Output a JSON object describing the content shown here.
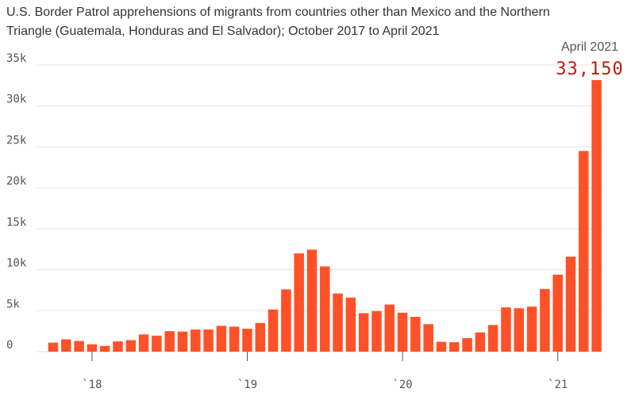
{
  "chart_data": {
    "type": "bar",
    "subtitle": "U.S. Border Patrol apprehensions of migrants from countries other than Mexico and the Northern Triangle (Guatemala, Honduras and El Salvador); October 2017 to April 2021",
    "x": [
      "2017-10",
      "2017-11",
      "2017-12",
      "2018-01",
      "2018-02",
      "2018-03",
      "2018-04",
      "2018-05",
      "2018-06",
      "2018-07",
      "2018-08",
      "2018-09",
      "2018-10",
      "2018-11",
      "2018-12",
      "2019-01",
      "2019-02",
      "2019-03",
      "2019-04",
      "2019-05",
      "2019-06",
      "2019-07",
      "2019-08",
      "2019-09",
      "2019-10",
      "2019-11",
      "2019-12",
      "2020-01",
      "2020-02",
      "2020-03",
      "2020-04",
      "2020-05",
      "2020-06",
      "2020-07",
      "2020-08",
      "2020-09",
      "2020-10",
      "2020-11",
      "2020-12",
      "2021-01",
      "2021-02",
      "2021-03",
      "2021-04"
    ],
    "values": [
      1100,
      1500,
      1300,
      900,
      700,
      1250,
      1400,
      2100,
      1950,
      2500,
      2450,
      2700,
      2700,
      3150,
      3050,
      2800,
      3500,
      5150,
      7600,
      12000,
      12450,
      10400,
      7100,
      6600,
      4700,
      4950,
      5750,
      4750,
      4250,
      3350,
      1200,
      1150,
      1650,
      2350,
      3250,
      5400,
      5300,
      5500,
      7650,
      9400,
      11600,
      24500,
      33150
    ],
    "y_ticks": [
      0,
      5000,
      10000,
      15000,
      20000,
      25000,
      30000,
      35000
    ],
    "y_tick_labels": [
      "0",
      "5k",
      "10k",
      "15k",
      "20k",
      "25k",
      "30k",
      "35k"
    ],
    "ylim": [
      0,
      35000
    ],
    "x_tick_labels": [
      {
        "label": "`18",
        "x": "2018-01"
      },
      {
        "label": "`19",
        "x": "2019-01"
      },
      {
        "label": "`20",
        "x": "2020-01"
      },
      {
        "label": "`21",
        "x": "2021-01"
      }
    ],
    "grid": true,
    "color": "#ff5128",
    "annotation": {
      "label": "April 2021",
      "value": "33,150",
      "color": "#b71c0c"
    }
  }
}
